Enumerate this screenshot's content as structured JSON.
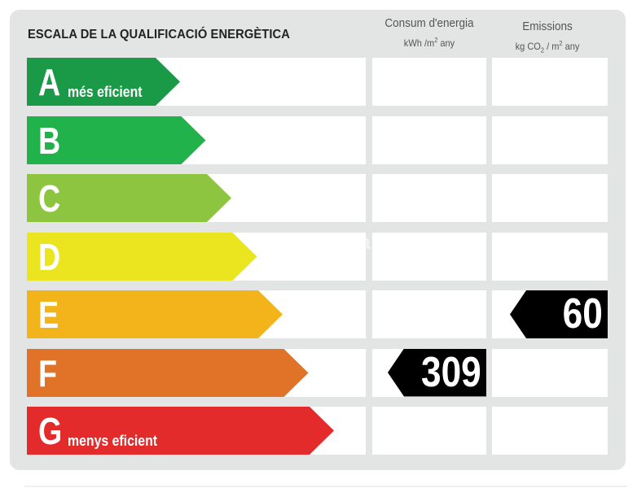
{
  "title": "ESCALA DE LA QUALIFICACIÓ ENERGÈTICA",
  "columns": {
    "consumption": {
      "line1": "Consum d'energia",
      "unit_a": "kWh /m",
      "unit_sup": "2",
      "unit_b": " any"
    },
    "emissions": {
      "line1": "Emissions",
      "unit_a": "kg CO",
      "unit_sub": "2",
      "unit_mid": " / m",
      "unit_sup": "2",
      "unit_b": " any"
    }
  },
  "classes": [
    {
      "letter": "A",
      "label": "més eficient",
      "color": "#1a9a47"
    },
    {
      "letter": "B",
      "label": "",
      "color": "#22b24c"
    },
    {
      "letter": "C",
      "label": "",
      "color": "#8dc540"
    },
    {
      "letter": "D",
      "label": "",
      "color": "#ebe520"
    },
    {
      "letter": "E",
      "label": "",
      "color": "#f2b31b"
    },
    {
      "letter": "F",
      "label": "",
      "color": "#e07327"
    },
    {
      "letter": "G",
      "label": "menys eficient",
      "color": "#e32b2b"
    }
  ],
  "consumption_rating": {
    "class": "F",
    "value": "309"
  },
  "emissions_rating": {
    "class": "E",
    "value": "60"
  },
  "watermark": "habitaclia"
}
